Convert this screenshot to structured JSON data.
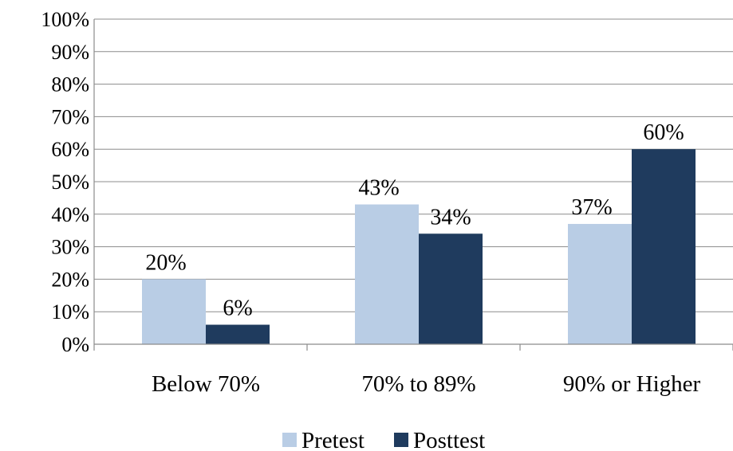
{
  "chart_data": {
    "type": "bar",
    "categories": [
      "Below 70%",
      "70% to 89%",
      "90% or Higher"
    ],
    "series": [
      {
        "name": "Pretest",
        "values": [
          20,
          43,
          37
        ],
        "labels": [
          "20%",
          "43%",
          "37%"
        ],
        "color": "#b9cde5"
      },
      {
        "name": "Posttest",
        "values": [
          6,
          34,
          60
        ],
        "labels": [
          "6%",
          "34%",
          "60%"
        ],
        "color": "#1f3b5e"
      }
    ],
    "ylim": [
      0,
      100
    ],
    "yticks": [
      0,
      10,
      20,
      30,
      40,
      50,
      60,
      70,
      80,
      90,
      100
    ],
    "ytick_labels": [
      "0%",
      "10%",
      "20%",
      "30%",
      "40%",
      "50%",
      "60%",
      "70%",
      "80%",
      "90%",
      "100%"
    ],
    "grid": true,
    "legend_position": "bottom",
    "gridline_color": "#8c8c8c"
  }
}
